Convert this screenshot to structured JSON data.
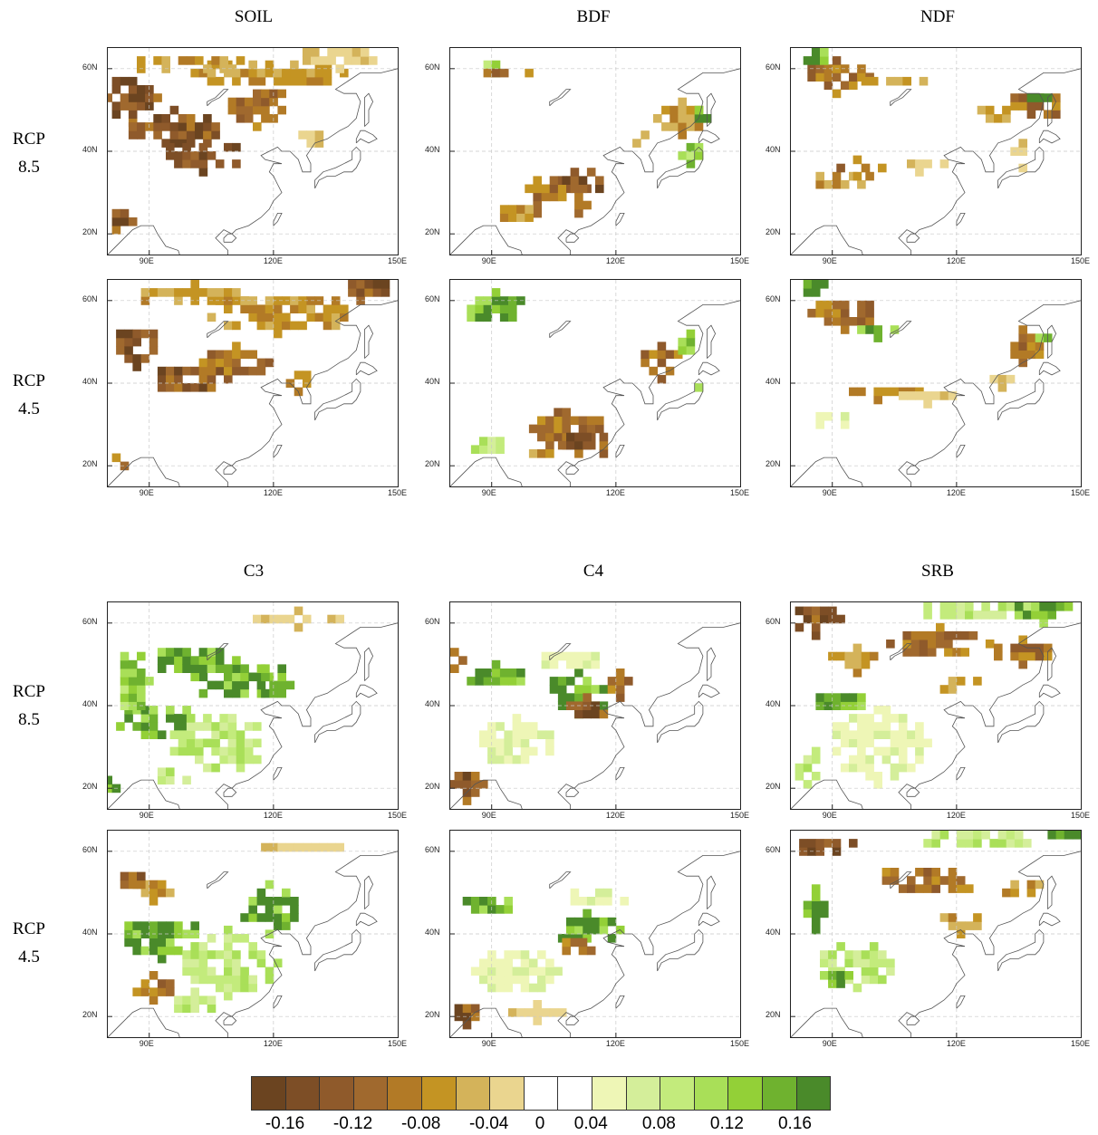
{
  "top_section": {
    "columns": [
      "SOIL",
      "BDF",
      "NDF"
    ],
    "rows": [
      {
        "line1": "RCP",
        "line2": "8.5"
      },
      {
        "line1": "RCP",
        "line2": "4.5"
      }
    ]
  },
  "bottom_section": {
    "columns": [
      "C3",
      "C4",
      "SRB"
    ],
    "rows": [
      {
        "line1": "RCP",
        "line2": "8.5"
      },
      {
        "line1": "RCP",
        "line2": "4.5"
      }
    ]
  },
  "map_axes": {
    "lon_ticks": [
      "90E",
      "120E",
      "150E"
    ],
    "lat_ticks": [
      "60N",
      "40N",
      "20N"
    ],
    "lon_range": [
      80,
      150
    ],
    "lat_range": [
      15,
      65
    ]
  },
  "colorbar": {
    "colors": [
      "#6b4420",
      "#7d4e26",
      "#8f5a2b",
      "#a0692e",
      "#b27a26",
      "#c49423",
      "#d4b35a",
      "#ead58f",
      "#ffffff",
      "#ffffff",
      "#eef6b6",
      "#d4ee9a",
      "#c3eb7c",
      "#a9df58",
      "#93d037",
      "#6fb22f",
      "#4a8a2a"
    ],
    "labels": [
      "-0.16",
      "-0.12",
      "-0.08",
      "-0.04",
      "0",
      "0.04",
      "0.08",
      "0.12",
      "0.16"
    ]
  },
  "panels": [
    {
      "variable": "SOIL",
      "scenario": "RCP 8.5",
      "blobs": [
        [
          85,
          52,
          6,
          6,
          -0.16
        ],
        [
          95,
          44,
          12,
          5,
          -0.16
        ],
        [
          102,
          38,
          10,
          4,
          -0.16
        ],
        [
          115,
          50,
          8,
          5,
          -0.12
        ],
        [
          120,
          58,
          20,
          4,
          -0.08
        ],
        [
          135,
          62,
          10,
          3,
          -0.04
        ],
        [
          100,
          60,
          15,
          3,
          -0.08
        ],
        [
          82,
          22,
          3,
          4,
          -0.16
        ],
        [
          128,
          42,
          4,
          3,
          -0.04
        ]
      ]
    },
    {
      "variable": "SOIL",
      "scenario": "RCP 4.5",
      "blobs": [
        [
          86,
          48,
          6,
          5,
          -0.16
        ],
        [
          98,
          40,
          10,
          4,
          -0.16
        ],
        [
          110,
          44,
          8,
          4,
          -0.12
        ],
        [
          120,
          56,
          18,
          5,
          -0.08
        ],
        [
          140,
          62,
          8,
          3,
          -0.16
        ],
        [
          100,
          60,
          14,
          3,
          -0.08
        ],
        [
          82,
          20,
          3,
          3,
          -0.12
        ],
        [
          125,
          40,
          4,
          3,
          -0.08
        ]
      ]
    },
    {
      "variable": "BDF",
      "scenario": "RCP 8.5",
      "blobs": [
        [
          105,
          28,
          9,
          6,
          -0.12
        ],
        [
          112,
          32,
          5,
          4,
          -0.16
        ],
        [
          95,
          24,
          5,
          3,
          -0.08
        ],
        [
          90,
          60,
          8,
          2,
          0.12
        ],
        [
          92,
          58,
          6,
          2,
          -0.12
        ],
        [
          135,
          47,
          6,
          4,
          -0.08
        ],
        [
          140,
          48,
          3,
          3,
          0.16
        ],
        [
          138,
          38,
          3,
          4,
          0.12
        ],
        [
          125,
          42,
          3,
          3,
          -0.08
        ]
      ]
    },
    {
      "variable": "BDF",
      "scenario": "RCP 4.5",
      "blobs": [
        [
          108,
          28,
          9,
          6,
          -0.12
        ],
        [
          112,
          24,
          6,
          4,
          -0.16
        ],
        [
          90,
          57,
          8,
          4,
          0.16
        ],
        [
          88,
          24,
          5,
          3,
          0.08
        ],
        [
          130,
          44,
          6,
          4,
          -0.12
        ],
        [
          137,
          48,
          4,
          3,
          0.12
        ],
        [
          138,
          37,
          3,
          3,
          0.08
        ],
        [
          100,
          22,
          3,
          2,
          -0.08
        ]
      ]
    },
    {
      "variable": "NDF",
      "scenario": "RCP 8.5",
      "blobs": [
        [
          90,
          57,
          8,
          4,
          -0.12
        ],
        [
          85,
          62,
          4,
          3,
          0.16
        ],
        [
          92,
          32,
          8,
          3,
          -0.08
        ],
        [
          95,
          35,
          6,
          2,
          -0.12
        ],
        [
          110,
          36,
          8,
          2,
          -0.04
        ],
        [
          138,
          50,
          7,
          4,
          -0.12
        ],
        [
          140,
          52,
          3,
          2,
          0.16
        ],
        [
          128,
          48,
          5,
          3,
          -0.08
        ],
        [
          135,
          38,
          4,
          3,
          -0.04
        ],
        [
          105,
          56,
          8,
          2,
          -0.08
        ]
      ]
    },
    {
      "variable": "NDF",
      "scenario": "RCP 4.5",
      "blobs": [
        [
          92,
          56,
          8,
          4,
          -0.12
        ],
        [
          85,
          62,
          4,
          3,
          0.16
        ],
        [
          100,
          52,
          6,
          2,
          0.16
        ],
        [
          100,
          37,
          10,
          2,
          -0.08
        ],
        [
          112,
          36,
          6,
          2,
          -0.04
        ],
        [
          135,
          48,
          6,
          4,
          -0.12
        ],
        [
          140,
          50,
          3,
          2,
          0.12
        ],
        [
          90,
          30,
          6,
          3,
          0.04
        ],
        [
          130,
          40,
          4,
          2,
          -0.04
        ]
      ]
    },
    {
      "variable": "C3",
      "scenario": "RCP 8.5",
      "blobs": [
        [
          90,
          35,
          10,
          5,
          0.16
        ],
        [
          105,
          30,
          12,
          8,
          0.08
        ],
        [
          110,
          45,
          10,
          5,
          0.16
        ],
        [
          85,
          45,
          4,
          8,
          0.12
        ],
        [
          100,
          50,
          10,
          4,
          0.16
        ],
        [
          120,
          45,
          5,
          5,
          0.16
        ],
        [
          80,
          20,
          3,
          3,
          0.16
        ],
        [
          125,
          60,
          10,
          2,
          -0.04
        ],
        [
          95,
          22,
          5,
          3,
          0.08
        ]
      ]
    },
    {
      "variable": "C3",
      "scenario": "RCP 4.5",
      "blobs": [
        [
          92,
          38,
          10,
          5,
          0.16
        ],
        [
          90,
          26,
          6,
          3,
          -0.12
        ],
        [
          108,
          32,
          12,
          8,
          0.08
        ],
        [
          118,
          45,
          8,
          6,
          0.16
        ],
        [
          90,
          50,
          6,
          3,
          -0.08
        ],
        [
          85,
          52,
          4,
          3,
          -0.16
        ],
        [
          125,
          60,
          10,
          2,
          -0.04
        ],
        [
          100,
          22,
          6,
          3,
          0.08
        ]
      ]
    },
    {
      "variable": "C4",
      "scenario": "RCP 8.5",
      "blobs": [
        [
          110,
          42,
          8,
          5,
          0.16
        ],
        [
          112,
          38,
          6,
          3,
          -0.16
        ],
        [
          90,
          46,
          8,
          3,
          0.16
        ],
        [
          120,
          44,
          4,
          3,
          -0.12
        ],
        [
          83,
          20,
          4,
          4,
          -0.16
        ],
        [
          95,
          30,
          10,
          6,
          0.04
        ],
        [
          108,
          50,
          8,
          3,
          0.04
        ],
        [
          80,
          50,
          2,
          4,
          -0.12
        ]
      ]
    },
    {
      "variable": "C4",
      "scenario": "RCP 4.5",
      "blobs": [
        [
          112,
          40,
          8,
          4,
          0.16
        ],
        [
          110,
          36,
          5,
          3,
          -0.12
        ],
        [
          88,
          46,
          7,
          3,
          0.16
        ],
        [
          83,
          20,
          4,
          3,
          -0.16
        ],
        [
          95,
          30,
          10,
          6,
          0.04
        ],
        [
          115,
          48,
          8,
          3,
          0.04
        ],
        [
          100,
          20,
          6,
          2,
          -0.04
        ]
      ]
    },
    {
      "variable": "SRB",
      "scenario": "RCP 8.5",
      "blobs": [
        [
          85,
          60,
          6,
          4,
          -0.16
        ],
        [
          125,
          62,
          15,
          3,
          0.08
        ],
        [
          140,
          62,
          8,
          3,
          0.16
        ],
        [
          115,
          54,
          12,
          4,
          -0.12
        ],
        [
          135,
          52,
          8,
          3,
          -0.12
        ],
        [
          92,
          40,
          8,
          3,
          0.16
        ],
        [
          100,
          30,
          12,
          10,
          0.04
        ],
        [
          95,
          50,
          8,
          3,
          -0.08
        ],
        [
          120,
          44,
          6,
          3,
          -0.08
        ],
        [
          83,
          25,
          4,
          5,
          0.08
        ]
      ]
    },
    {
      "variable": "SRB",
      "scenario": "RCP 4.5",
      "blobs": [
        [
          88,
          60,
          8,
          3,
          -0.16
        ],
        [
          125,
          62,
          15,
          3,
          0.08
        ],
        [
          145,
          63,
          5,
          2,
          0.16
        ],
        [
          112,
          52,
          12,
          4,
          -0.12
        ],
        [
          135,
          50,
          6,
          3,
          -0.08
        ],
        [
          85,
          45,
          4,
          5,
          0.16
        ],
        [
          95,
          32,
          10,
          6,
          0.08
        ],
        [
          90,
          28,
          5,
          3,
          0.16
        ],
        [
          120,
          42,
          6,
          3,
          -0.08
        ]
      ]
    }
  ]
}
